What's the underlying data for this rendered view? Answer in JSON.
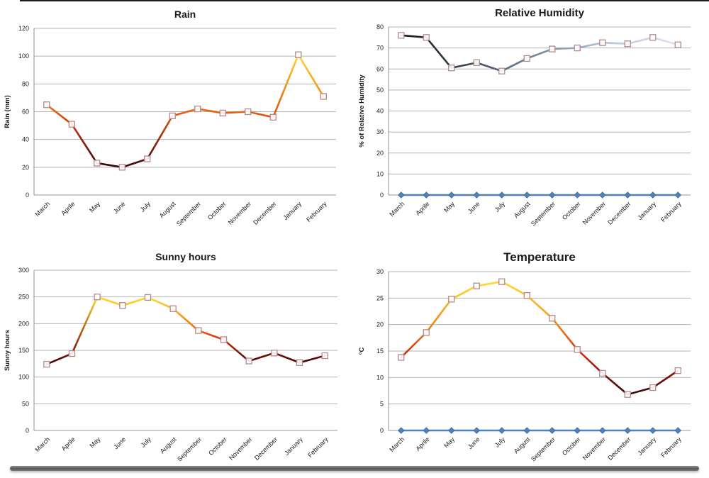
{
  "page": {
    "background": "#ffffff",
    "top_border_color": "#1c1c1c",
    "bottom_bar_color": "#5b5b5b"
  },
  "style": {
    "grid_color": "#b3b3b3",
    "axis_color": "#8f8f8f",
    "zero_axis_color": "#999999",
    "text_color": "#1a1a1a",
    "marker_outline": "#b5898b",
    "marker_fill": "#ffffff",
    "zero_series_color": "#4f81bd",
    "zero_marker_edge": "#3a679c",
    "warm_palette": [
      {
        "t": 0,
        "c": "#330808"
      },
      {
        "t": 0.18,
        "c": "#8a0f08"
      },
      {
        "t": 0.34,
        "c": "#c92310"
      },
      {
        "t": 0.5,
        "c": "#e8650f"
      },
      {
        "t": 0.66,
        "c": "#f79118"
      },
      {
        "t": 0.82,
        "c": "#fdb723"
      },
      {
        "t": 1,
        "c": "#ffd92e"
      }
    ],
    "cool_palette": [
      {
        "t": 0,
        "c": "#181818"
      },
      {
        "t": 0.2,
        "c": "#343c49"
      },
      {
        "t": 0.4,
        "c": "#5d7288"
      },
      {
        "t": 0.6,
        "c": "#8fa3b8"
      },
      {
        "t": 0.8,
        "c": "#c4cce0"
      },
      {
        "t": 1,
        "c": "#e0def2"
      }
    ]
  },
  "chart_data": [
    {
      "type": "line",
      "title": "Rain",
      "xlabel": "",
      "ylabel": "Rain (mm)",
      "ylim": [
        0,
        120
      ],
      "ytick_step": 20,
      "grid": true,
      "legend": "none",
      "palette": "warm",
      "categories": [
        "March",
        "Aprile",
        "May",
        "June",
        "July",
        "August",
        "September",
        "October",
        "November",
        "December",
        "January",
        "February"
      ],
      "series": [
        {
          "name": "rain_mm",
          "values": [
            65,
            51,
            23,
            20,
            26,
            57,
            62,
            59,
            60,
            56,
            101,
            71
          ]
        }
      ]
    },
    {
      "type": "line",
      "title": "Relative Humidity",
      "xlabel": "",
      "ylabel": "% of Relative Humidity",
      "ylim": [
        0,
        80
      ],
      "ytick_step": 10,
      "grid": true,
      "legend": "none",
      "palette": "cool",
      "categories": [
        "March",
        "Aprile",
        "May",
        "June",
        "July",
        "August",
        "September",
        "October",
        "November",
        "December",
        "January",
        "February"
      ],
      "series": [
        {
          "name": "humidity_pct",
          "values": [
            76,
            75,
            60.5,
            63,
            59,
            65,
            69.5,
            70,
            72.5,
            72,
            75,
            71.5
          ]
        },
        {
          "name": "zero_baseline",
          "values": [
            0,
            0,
            0,
            0,
            0,
            0,
            0,
            0,
            0,
            0,
            0,
            0
          ]
        }
      ]
    },
    {
      "type": "line",
      "title": "Sunny hours",
      "xlabel": "",
      "ylabel": "Sunny hours",
      "ylim": [
        0,
        300
      ],
      "ytick_step": 50,
      "grid": true,
      "legend": "none",
      "palette": "warm",
      "categories": [
        "March",
        "Aprile",
        "May",
        "June",
        "July",
        "August",
        "September",
        "October",
        "November",
        "December",
        "January",
        "February"
      ],
      "series": [
        {
          "name": "sunny_hours",
          "values": [
            124,
            144,
            250,
            234,
            249,
            228,
            187,
            170,
            130,
            145,
            127,
            140
          ]
        }
      ]
    },
    {
      "type": "line",
      "title": "Temperature",
      "xlabel": "",
      "ylabel": "°C",
      "ylim": [
        0,
        30
      ],
      "ytick_step": 5,
      "grid": true,
      "legend": "none",
      "palette": "warm",
      "categories": [
        "March",
        "Aprile",
        "May",
        "June",
        "July",
        "August",
        "September",
        "October",
        "November",
        "December",
        "January",
        "February"
      ],
      "series": [
        {
          "name": "temperature_c",
          "values": [
            13.8,
            18.5,
            24.8,
            27.3,
            28.1,
            25.5,
            21.2,
            15.3,
            10.8,
            6.8,
            8.1,
            11.3
          ]
        },
        {
          "name": "zero_baseline",
          "values": [
            0,
            0,
            0,
            0,
            0,
            0,
            0,
            0,
            0,
            0,
            0,
            0
          ]
        }
      ]
    }
  ]
}
